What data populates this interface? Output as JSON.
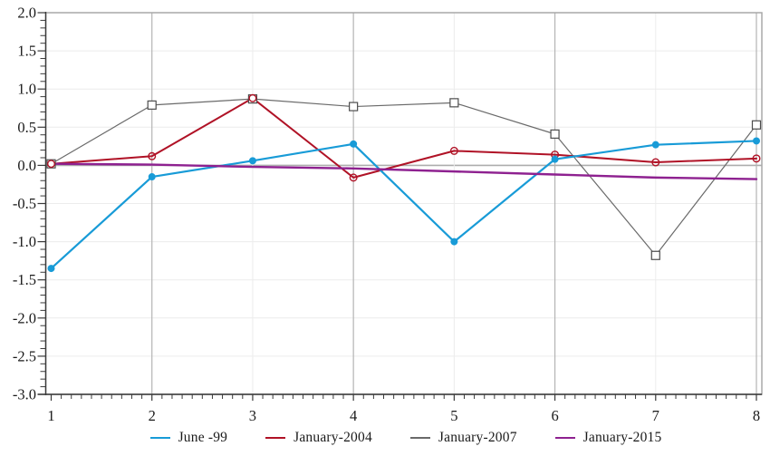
{
  "chart_data": {
    "type": "line",
    "x_categories": [
      "1",
      "2",
      "3",
      "4",
      "5",
      "6",
      "7",
      "8"
    ],
    "ylim": [
      -3.0,
      2.0
    ],
    "ytick_step": 0.5,
    "yminor_step": 0.1,
    "xminor_per_major": 10,
    "ytick_labels": [
      "2.0",
      "1.5",
      "1.0",
      "0.5",
      "0.0",
      "-0.5",
      "-1.0",
      "-1.5",
      "-2.0",
      "-2.5",
      "-3.0"
    ],
    "grid": true,
    "legend_position": "bottom",
    "series": [
      {
        "name": "June -99",
        "color": "#189bd7",
        "marker": "filled-circle",
        "values": [
          -1.35,
          -0.15,
          0.06,
          0.28,
          -1.0,
          0.08,
          0.27,
          0.32
        ]
      },
      {
        "name": "January-2004",
        "color": "#b01226",
        "marker": "open-circle",
        "values": [
          0.02,
          0.12,
          0.88,
          -0.16,
          0.19,
          0.14,
          0.04,
          0.09
        ]
      },
      {
        "name": "January-2007",
        "color": "#6a6a6a",
        "marker": "open-square",
        "values": [
          0.02,
          0.79,
          0.87,
          0.77,
          0.82,
          0.41,
          -1.18,
          0.53
        ]
      },
      {
        "name": "January-2015",
        "color": "#8e2190",
        "marker": "none",
        "values": [
          0.02,
          0.01,
          -0.02,
          -0.04,
          -0.08,
          -0.12,
          -0.16,
          -0.18
        ]
      }
    ],
    "colors": {
      "frame": "#a8a8a8",
      "zero_line": "#adadad",
      "major_grid": "#b4b4b4",
      "minor_grid": "#ececec",
      "axis": "#3a3a3a",
      "label": "#1a1a1a"
    }
  }
}
